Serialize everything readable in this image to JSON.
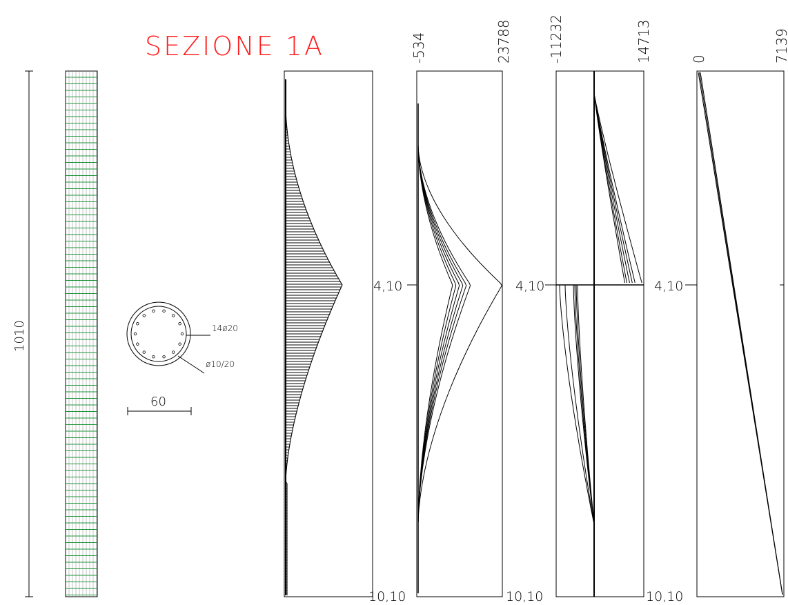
{
  "title": "SEZIONE 1A",
  "colors": {
    "title": "#ff2020",
    "mesh": "#1a9a3a",
    "line": "#000000"
  },
  "pile": {
    "length_label": "1010"
  },
  "section": {
    "main_bars_label": "14ø20",
    "stirrups_label": "ø10/20",
    "diameter_label": "60",
    "bar_count": 14
  },
  "depth_labels": {
    "mid": "4,10",
    "bottom": "10,10"
  },
  "diagrams": [
    {
      "id": "pressure",
      "min_label": "",
      "max_label": ""
    },
    {
      "id": "moment",
      "min_label": "-534",
      "max_label": "23788"
    },
    {
      "id": "shear",
      "min_label": "-11232",
      "max_label": "14713"
    },
    {
      "id": "axial",
      "min_label": "0",
      "max_label": "7139"
    }
  ]
}
